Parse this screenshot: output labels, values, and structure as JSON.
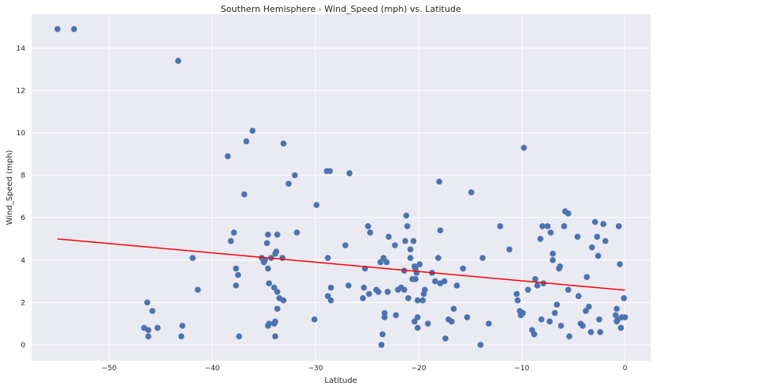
{
  "chart_data": {
    "type": "scatter",
    "title": "Southern Hemisphere - Wind_Speed (mph) vs. Latitude",
    "xlabel": "Latitude",
    "ylabel": "Wind_Speed (mph)",
    "xlim": [
      -57.5,
      2.5
    ],
    "ylim": [
      -0.75,
      15.6
    ],
    "xticks": [
      -50,
      -40,
      -30,
      -20,
      -10,
      0
    ],
    "yticks": [
      0,
      2,
      4,
      6,
      8,
      10,
      12,
      14
    ],
    "grid": true,
    "background": "#eaeaf2",
    "point_color": "#4c72b0",
    "line_color": "#ff0000",
    "regression": {
      "x": [
        -55,
        0
      ],
      "y": [
        5.0,
        2.58
      ]
    },
    "points": [
      [
        -55,
        14.9
      ],
      [
        -53.4,
        14.9
      ],
      [
        -43.3,
        13.4
      ],
      [
        -46.6,
        0.8
      ],
      [
        -46.3,
        2.0
      ],
      [
        -46.2,
        0.4
      ],
      [
        -46.2,
        0.7
      ],
      [
        -45.8,
        1.6
      ],
      [
        -45.3,
        0.8
      ],
      [
        -42.9,
        0.9
      ],
      [
        -43.0,
        0.4
      ],
      [
        -41.9,
        4.1
      ],
      [
        -41.4,
        2.6
      ],
      [
        -38.5,
        8.9
      ],
      [
        -38.2,
        4.9
      ],
      [
        -37.9,
        5.3
      ],
      [
        -37.7,
        3.6
      ],
      [
        -37.7,
        2.8
      ],
      [
        -37.5,
        3.3
      ],
      [
        -37.4,
        0.4
      ],
      [
        -36.9,
        7.1
      ],
      [
        -36.7,
        9.6
      ],
      [
        -36.1,
        10.1
      ],
      [
        -35.2,
        4.1
      ],
      [
        -35.0,
        3.9
      ],
      [
        -34.9,
        4.0
      ],
      [
        -34.7,
        4.8
      ],
      [
        -34.6,
        5.2
      ],
      [
        -34.6,
        3.6
      ],
      [
        -34.5,
        2.9
      ],
      [
        -34.6,
        0.9
      ],
      [
        -34.5,
        1.0
      ],
      [
        -34.3,
        4.1
      ],
      [
        -34.0,
        2.7
      ],
      [
        -33.9,
        4.3
      ],
      [
        -33.8,
        4.4
      ],
      [
        -33.9,
        1.1
      ],
      [
        -34.0,
        1.0
      ],
      [
        -33.9,
        0.4
      ],
      [
        -33.7,
        5.2
      ],
      [
        -33.7,
        2.5
      ],
      [
        -33.7,
        1.7
      ],
      [
        -33.5,
        2.2
      ],
      [
        -33.2,
        4.1
      ],
      [
        -33.1,
        2.1
      ],
      [
        -33.1,
        9.5
      ],
      [
        -32.6,
        7.6
      ],
      [
        -32.0,
        8.0
      ],
      [
        -31.8,
        5.3
      ],
      [
        -30.1,
        1.2
      ],
      [
        -29.9,
        6.6
      ],
      [
        -28.9,
        8.2
      ],
      [
        -28.8,
        4.1
      ],
      [
        -28.8,
        2.3
      ],
      [
        -28.6,
        8.2
      ],
      [
        -28.5,
        2.7
      ],
      [
        -28.5,
        2.1
      ],
      [
        -27.1,
        4.7
      ],
      [
        -26.8,
        2.8
      ],
      [
        -26.7,
        8.1
      ],
      [
        -25.4,
        2.2
      ],
      [
        -25.3,
        2.7
      ],
      [
        -25.2,
        3.6
      ],
      [
        -24.9,
        5.6
      ],
      [
        -24.8,
        2.4
      ],
      [
        -24.7,
        5.3
      ],
      [
        -24.1,
        2.6
      ],
      [
        -23.9,
        2.5
      ],
      [
        -23.7,
        3.9
      ],
      [
        -23.6,
        0.0
      ],
      [
        -23.5,
        0.5
      ],
      [
        -23.4,
        4.1
      ],
      [
        -23.3,
        1.5
      ],
      [
        -23.3,
        1.3
      ],
      [
        -23.1,
        3.9
      ],
      [
        -23.0,
        2.5
      ],
      [
        -22.9,
        5.1
      ],
      [
        -22.3,
        4.7
      ],
      [
        -22.2,
        1.4
      ],
      [
        -22.0,
        2.6
      ],
      [
        -21.7,
        2.7
      ],
      [
        -21.4,
        3.5
      ],
      [
        -21.4,
        2.6
      ],
      [
        -21.3,
        4.9
      ],
      [
        -21.2,
        6.1
      ],
      [
        -21.1,
        5.6
      ],
      [
        -21.0,
        2.2
      ],
      [
        -20.8,
        4.5
      ],
      [
        -20.8,
        4.1
      ],
      [
        -20.6,
        3.1
      ],
      [
        -20.5,
        4.9
      ],
      [
        -20.4,
        3.7
      ],
      [
        -20.3,
        3.1
      ],
      [
        -20.4,
        1.1
      ],
      [
        -20.3,
        3.6
      ],
      [
        -20.2,
        3.4
      ],
      [
        -20.1,
        0.8
      ],
      [
        -20.1,
        2.1
      ],
      [
        -20.1,
        1.3
      ],
      [
        -19.9,
        3.8
      ],
      [
        -19.6,
        2.1
      ],
      [
        -19.5,
        2.4
      ],
      [
        -19.4,
        2.6
      ],
      [
        -19.1,
        1.0
      ],
      [
        -18.7,
        3.4
      ],
      [
        -18.4,
        3.0
      ],
      [
        -18.1,
        4.1
      ],
      [
        -18.0,
        7.7
      ],
      [
        -17.9,
        5.4
      ],
      [
        -17.9,
        2.9
      ],
      [
        -17.5,
        3.0
      ],
      [
        -17.4,
        0.3
      ],
      [
        -17.1,
        1.2
      ],
      [
        -16.8,
        1.1
      ],
      [
        -16.6,
        1.7
      ],
      [
        -16.3,
        2.8
      ],
      [
        -15.7,
        3.6
      ],
      [
        -15.3,
        1.3
      ],
      [
        -14.9,
        7.2
      ],
      [
        -14.0,
        0.0
      ],
      [
        -13.8,
        4.1
      ],
      [
        -13.2,
        1.0
      ],
      [
        -12.1,
        5.6
      ],
      [
        -11.2,
        4.5
      ],
      [
        -10.5,
        2.4
      ],
      [
        -10.4,
        2.1
      ],
      [
        -10.2,
        1.6
      ],
      [
        -10.1,
        1.4
      ],
      [
        -9.9,
        1.5
      ],
      [
        -9.8,
        9.3
      ],
      [
        -9.4,
        2.6
      ],
      [
        -9.0,
        0.7
      ],
      [
        -8.8,
        0.5
      ],
      [
        -8.7,
        3.1
      ],
      [
        -8.5,
        2.8
      ],
      [
        -8.2,
        5.0
      ],
      [
        -8.1,
        1.2
      ],
      [
        -8.0,
        5.6
      ],
      [
        -7.9,
        2.9
      ],
      [
        -7.5,
        5.6
      ],
      [
        -7.3,
        1.1
      ],
      [
        -7.2,
        5.3
      ],
      [
        -7.0,
        4.3
      ],
      [
        -7.0,
        4.0
      ],
      [
        -6.8,
        1.5
      ],
      [
        -6.6,
        1.9
      ],
      [
        -6.4,
        3.6
      ],
      [
        -6.3,
        3.7
      ],
      [
        -6.2,
        0.9
      ],
      [
        -5.9,
        5.6
      ],
      [
        -5.8,
        6.3
      ],
      [
        -5.5,
        6.2
      ],
      [
        -5.5,
        2.6
      ],
      [
        -5.4,
        0.4
      ],
      [
        -4.6,
        5.1
      ],
      [
        -4.5,
        2.3
      ],
      [
        -4.3,
        1.0
      ],
      [
        -4.1,
        0.9
      ],
      [
        -3.8,
        1.6
      ],
      [
        -3.7,
        3.2
      ],
      [
        -3.5,
        1.8
      ],
      [
        -3.3,
        0.6
      ],
      [
        -3.2,
        4.6
      ],
      [
        -2.9,
        5.8
      ],
      [
        -2.7,
        5.1
      ],
      [
        -2.6,
        4.2
      ],
      [
        -2.5,
        1.2
      ],
      [
        -2.4,
        0.6
      ],
      [
        -2.1,
        5.7
      ],
      [
        -1.9,
        4.9
      ],
      [
        -0.9,
        1.4
      ],
      [
        -0.8,
        1.7
      ],
      [
        -0.8,
        1.1
      ],
      [
        -0.7,
        1.2
      ],
      [
        -0.6,
        5.6
      ],
      [
        -0.5,
        3.8
      ],
      [
        -0.4,
        0.8
      ],
      [
        -0.3,
        1.3
      ],
      [
        -0.1,
        2.2
      ],
      [
        0.0,
        1.3
      ]
    ]
  }
}
